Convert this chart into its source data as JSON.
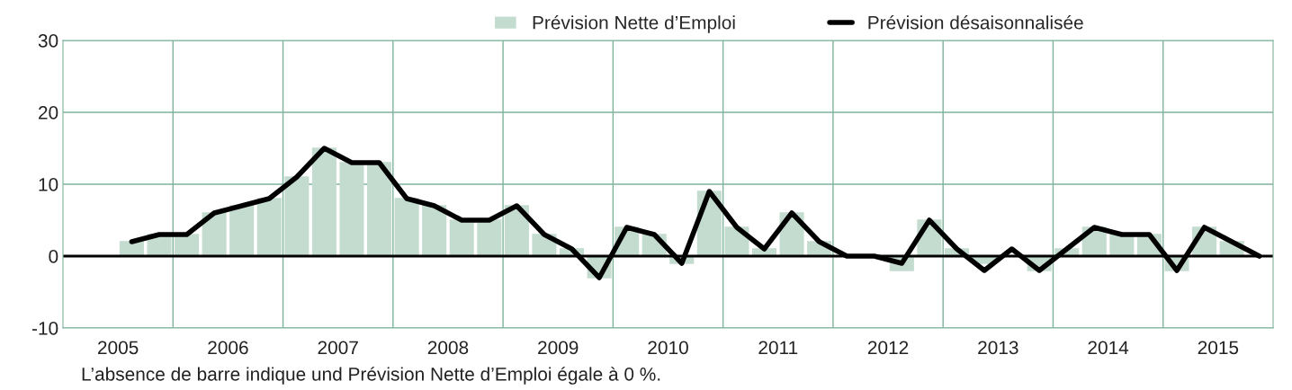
{
  "chart_data": {
    "type": "bar",
    "x": [
      2005.625,
      2005.875,
      2006.125,
      2006.375,
      2006.625,
      2006.875,
      2007.125,
      2007.375,
      2007.625,
      2007.875,
      2008.125,
      2008.375,
      2008.625,
      2008.875,
      2009.125,
      2009.375,
      2009.625,
      2009.875,
      2010.125,
      2010.375,
      2010.625,
      2010.875,
      2011.125,
      2011.375,
      2011.625,
      2011.875,
      2012.125,
      2012.375,
      2012.625,
      2012.875,
      2013.125,
      2013.375,
      2013.625,
      2013.875,
      2014.125,
      2014.375,
      2014.625,
      2014.875,
      2015.125,
      2015.375,
      2015.625,
      2015.875
    ],
    "series": [
      {
        "name": "Prévision Nette d’Emploi",
        "color": "#c4dccf",
        "values": [
          2,
          3,
          3,
          6,
          7,
          8,
          11,
          15,
          13,
          13,
          8,
          7,
          5,
          5,
          7,
          3,
          1,
          -3,
          4,
          3,
          -1,
          9,
          4,
          1,
          6,
          2,
          0,
          0,
          -2,
          5,
          1,
          -1,
          0,
          -2,
          1,
          4,
          3,
          3,
          -2,
          4,
          2,
          0
        ]
      },
      {
        "name": "Prévision désaisonnalisée",
        "type": "line",
        "color": "#000000",
        "values": [
          2,
          3,
          3,
          6,
          7,
          8,
          11,
          15,
          13,
          13,
          8,
          7,
          5,
          5,
          7,
          3,
          1,
          -3,
          4,
          3,
          -1,
          9,
          4,
          1,
          6,
          2,
          0,
          0,
          -1,
          5,
          1,
          -2,
          1,
          -2,
          1,
          4,
          3,
          3,
          -2,
          4,
          2,
          0
        ]
      }
    ],
    "xlim": [
      2005,
      2016
    ],
    "xticks": [
      {
        "value": 2005.5,
        "label": "2005"
      },
      {
        "value": 2006,
        "label": null
      },
      {
        "value": 2006.5,
        "label": "2006"
      },
      {
        "value": 2007,
        "label": null
      },
      {
        "value": 2007.5,
        "label": "2007"
      },
      {
        "value": 2008,
        "label": null
      },
      {
        "value": 2008.5,
        "label": "2008"
      },
      {
        "value": 2009,
        "label": null
      },
      {
        "value": 2009.5,
        "label": "2009"
      },
      {
        "value": 2010,
        "label": null
      },
      {
        "value": 2010.5,
        "label": "2010"
      },
      {
        "value": 2011,
        "label": null
      },
      {
        "value": 2011.5,
        "label": "2011"
      },
      {
        "value": 2012,
        "label": null
      },
      {
        "value": 2012.5,
        "label": "2012"
      },
      {
        "value": 2013,
        "label": null
      },
      {
        "value": 2013.5,
        "label": "2013"
      },
      {
        "value": 2014,
        "label": null
      },
      {
        "value": 2014.5,
        "label": "2014"
      },
      {
        "value": 2015,
        "label": null
      },
      {
        "value": 2015.5,
        "label": "2015"
      }
    ],
    "ylim": [
      -10,
      30
    ],
    "yticks": [
      -10,
      0,
      10,
      20,
      30
    ],
    "ref_lines": [
      {
        "axis": "y",
        "value": 0,
        "color": "#000000"
      }
    ],
    "grid": true,
    "legend": "top",
    "annotations": [
      "L’absence de barre indique und Prévision Nette d’Emploi égale à 0 %."
    ]
  }
}
